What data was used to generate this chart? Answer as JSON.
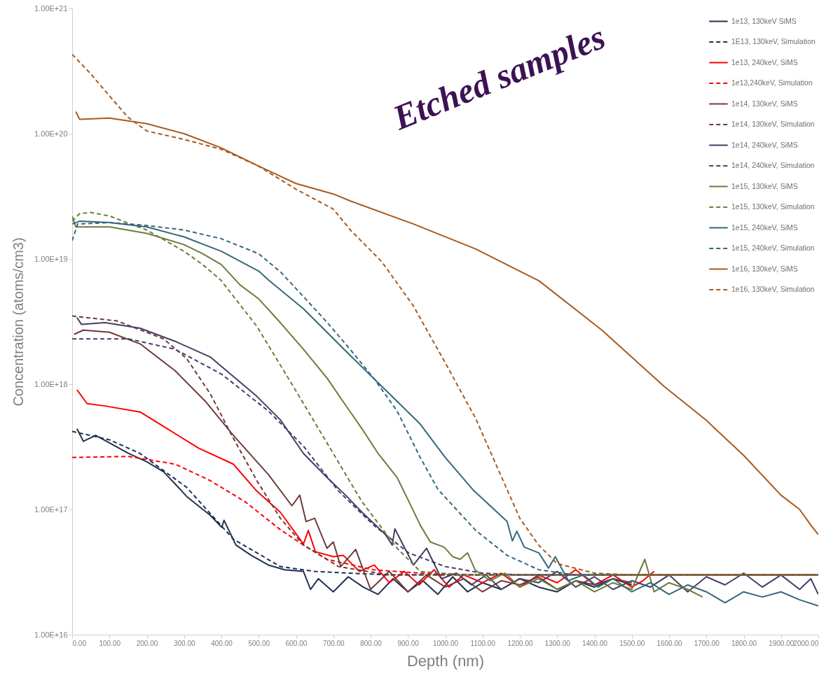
{
  "chart_data": {
    "type": "line",
    "xlabel": "Depth (nm)",
    "ylabel": "Concentration (atoms/cm3)",
    "log": true,
    "legend": "top right",
    "annotations": [
      "Etched samples"
    ],
    "xlim": [
      0,
      2000
    ],
    "xticks": [
      {
        "value": 0,
        "label": "0.00"
      },
      {
        "value": 100,
        "label": "100.00"
      },
      {
        "value": 200,
        "label": "200.00"
      },
      {
        "value": 300,
        "label": "300.00"
      },
      {
        "value": 400,
        "label": "400.00"
      },
      {
        "value": 500,
        "label": "500.00"
      },
      {
        "value": 600,
        "label": "600.00"
      },
      {
        "value": 700,
        "label": "700.00"
      },
      {
        "value": 800,
        "label": "800.00"
      },
      {
        "value": 900,
        "label": "900.00"
      },
      {
        "value": 1000,
        "label": "1000.00"
      },
      {
        "value": 1100,
        "label": "1100.00"
      },
      {
        "value": 1200,
        "label": "1200.00"
      },
      {
        "value": 1300,
        "label": "1300.00"
      },
      {
        "value": 1400,
        "label": "1400.00"
      },
      {
        "value": 1500,
        "label": "1500.00"
      },
      {
        "value": 1600,
        "label": "1600.00"
      },
      {
        "value": 1700,
        "label": "1700.00"
      },
      {
        "value": 1800,
        "label": "1800.00"
      },
      {
        "value": 1900,
        "label": "1900.00"
      },
      {
        "value": 2000,
        "label": "2000.00"
      }
    ],
    "ylim": [
      1e+16,
      1e+21
    ],
    "yticks": [
      {
        "value": 1e+16,
        "label": "1.00E+16"
      },
      {
        "value": 1e+17,
        "label": "1.00E+17"
      },
      {
        "value": 1e+18,
        "label": "1.00E+18"
      },
      {
        "value": 1e+19,
        "label": "1.00E+19"
      },
      {
        "value": 1e+20,
        "label": "1.00E+20"
      },
      {
        "value": 1e+21,
        "label": "1.00E+21"
      }
    ],
    "series": [
      {
        "name": "1e13, 130keV SiMS",
        "color": "#1f3050",
        "line_style": "solid",
        "x": [
          13,
          30,
          63,
          100,
          151,
          200,
          245,
          276,
          307,
          338,
          370,
          401,
          407,
          439,
          480,
          526,
          570,
          620,
          639,
          660,
          700,
          740,
          780,
          820,
          860,
          900,
          940,
          980,
          1020,
          1060,
          1100,
          1150,
          1200,
          1250,
          1300,
          1350,
          1400,
          1450,
          1500
        ],
        "values": [
          4.4e+17,
          3.5e+17,
          3.9e+17,
          3.4e+17,
          2.8e+17,
          2.4e+17,
          2e+17,
          1.6e+17,
          1.27e+17,
          1.07e+17,
          9e+16,
          7.2e+16,
          8.2e+16,
          5.2e+16,
          4.3e+16,
          3.6e+16,
          3.3e+16,
          3.2e+16,
          2.3e+16,
          2.8e+16,
          2.2e+16,
          2.9e+16,
          2.4e+16,
          2.1e+16,
          2.8e+16,
          2.2e+16,
          2.7e+16,
          2.1e+16,
          2.9e+16,
          2.2e+16,
          2.6e+16,
          2.3e+16,
          2.8e+16,
          2.4e+16,
          2.2e+16,
          2.7e+16,
          2.4e+16,
          2.8e+16,
          2.5e+16
        ]
      },
      {
        "name": "1E13, 130keV, Simulation",
        "color": "#1f3050",
        "line_style": "dashed",
        "x": [
          0,
          100,
          182,
          307,
          432,
          558,
          650,
          745,
          850,
          1000,
          1500,
          2000
        ],
        "values": [
          4.2e+17,
          3.6e+17,
          2.8e+17,
          1.5e+17,
          5.8e+16,
          3.5e+16,
          3.2e+16,
          3.1e+16,
          3e+16,
          3e+16,
          3e+16,
          3e+16
        ]
      },
      {
        "name": "1e13, 240keV, SiMS",
        "color": "#ff0000",
        "line_style": "solid",
        "x": [
          13,
          40,
          88,
          182,
          245,
          338,
          432,
          495,
          558,
          620,
          633,
          652,
          700,
          727,
          770,
          810,
          850,
          890,
          930,
          970,
          1010,
          1050,
          1100,
          1150,
          1200,
          1250,
          1300,
          1350,
          1400,
          1450,
          1500,
          1530,
          1560
        ],
        "values": [
          9e+17,
          7e+17,
          6.7e+17,
          6e+17,
          4.6e+17,
          3.1e+17,
          2.3e+17,
          1.4e+17,
          9.5e+16,
          5.3e+16,
          6.8e+16,
          4.6e+16,
          4.2e+16,
          4.3e+16,
          3.2e+16,
          3.6e+16,
          2.6e+16,
          3.2e+16,
          2.5e+16,
          3.3e+16,
          2.4e+16,
          3e+16,
          2.6e+16,
          3.1e+16,
          2.4e+16,
          3e+16,
          2.6e+16,
          3.3e+16,
          2.5e+16,
          3e+16,
          2.4e+16,
          2.7e+16,
          3.2e+16
        ]
      },
      {
        "name": "1e13,240keV, Simulation",
        "color": "#ff0000",
        "line_style": "dashed",
        "x": [
          0,
          151,
          276,
          370,
          464,
          558,
          620,
          683,
          808,
          933,
          1100,
          2000
        ],
        "values": [
          2.6e+17,
          2.65e+17,
          2.3e+17,
          1.7e+17,
          1.15e+17,
          6.9e+16,
          5.2e+16,
          4e+16,
          3.3e+16,
          3.1e+16,
          3e+16,
          3e+16
        ]
      },
      {
        "name": "1e14, 130keV, SiMS",
        "color": "#6e3b3b",
        "line_style": "solid",
        "x": [
          5,
          30,
          100,
          182,
          276,
          357,
          432,
          526,
          589,
          610,
          627,
          650,
          683,
          700,
          720,
          760,
          800,
          850,
          900,
          950,
          1000,
          1050,
          1100,
          1150,
          1200,
          1250,
          1300,
          1350,
          1400,
          1450,
          1500
        ],
        "values": [
          2.5e+18,
          2.7e+18,
          2.6e+18,
          2.1e+18,
          1.28e+18,
          7.3e+17,
          3.9e+17,
          1.9e+17,
          1.07e+17,
          1.3e+17,
          8e+16,
          8.5e+16,
          4.9e+16,
          5.5e+16,
          3.5e+16,
          4.8e+16,
          2.3e+16,
          3.2e+16,
          2.2e+16,
          3e+16,
          2.4e+16,
          2.8e+16,
          2.2e+16,
          2.7e+16,
          2.5e+16,
          2.9e+16,
          2.3e+16,
          2.7e+16,
          2.5e+16,
          2.8e+16,
          2.6e+16
        ]
      },
      {
        "name": "1e14, 130keV, Simulation",
        "color": "#6e3b3b",
        "line_style": "dashed",
        "x": [
          0,
          120,
          245,
          307,
          370,
          432,
          495,
          558,
          620,
          714,
          850,
          1000,
          2000
        ],
        "values": [
          3.5e+18,
          3.2e+18,
          2.3e+18,
          1.6e+18,
          8.4e+17,
          3.7e+17,
          1.7e+17,
          8.5e+16,
          5.2e+16,
          3.5e+16,
          3e+16,
          3e+16,
          3e+16
        ]
      },
      {
        "name": "1e14, 240keV, SiMS",
        "color": "#4a3b66",
        "line_style": "solid",
        "x": [
          13,
          25,
          88,
          182,
          276,
          370,
          495,
          558,
          620,
          683,
          733,
          777,
          840,
          858,
          865,
          915,
          950,
          990,
          1030,
          1070,
          1110,
          1150,
          1200,
          1250,
          1300,
          1350,
          1400,
          1450,
          1500,
          1550,
          1600,
          1650,
          1700,
          1750,
          1800,
          1850,
          1900,
          1950,
          1980,
          2000
        ],
        "values": [
          3.4e+18,
          3e+18,
          3.1e+18,
          2.8e+18,
          2.2e+18,
          1.65e+18,
          8e+17,
          5.2e+17,
          2.8e+17,
          1.8e+17,
          1.3e+17,
          9.5e+16,
          6.3e+16,
          5.2e+16,
          7e+16,
          3.6e+16,
          4.9e+16,
          2.8e+16,
          3.1e+16,
          2.5e+16,
          3e+16,
          2.3e+16,
          2.8e+16,
          2.6e+16,
          3.2e+16,
          2.4e+16,
          2.9e+16,
          2.3e+16,
          2.7e+16,
          2.4e+16,
          3e+16,
          2.2e+16,
          2.9e+16,
          2.5e+16,
          3.1e+16,
          2.4e+16,
          3e+16,
          2.3e+16,
          2.8e+16,
          2.1e+16
        ]
      },
      {
        "name": "1e14, 240keV, Simulation",
        "color": "#4a3b66",
        "line_style": "dashed",
        "x": [
          0,
          151,
          276,
          401,
          526,
          620,
          714,
          808,
          902,
          1000,
          1100,
          1200,
          2000
        ],
        "values": [
          2.3e+18,
          2.3e+18,
          1.9e+18,
          1.2e+18,
          6.1e+17,
          3.2e+17,
          1.4e+17,
          7.5e+16,
          4.5e+16,
          3.5e+16,
          3.1e+16,
          3e+16,
          3e+16
        ]
      },
      {
        "name": "1e15, 130keV, SiMS",
        "color": "#6b7d3a",
        "line_style": "solid",
        "x": [
          0,
          10,
          100,
          200,
          300,
          350,
          400,
          450,
          500,
          558,
          620,
          683,
          730,
          777,
          820,
          871,
          900,
          933,
          960,
          997,
          1020,
          1040,
          1060,
          1080,
          1120,
          1160,
          1200,
          1250,
          1300,
          1350,
          1400,
          1450,
          1500,
          1535,
          1560,
          1600,
          1650,
          1690
        ],
        "values": [
          2.2e+19,
          1.8e+19,
          1.8e+19,
          1.6e+19,
          1.3e+19,
          1.1e+19,
          9e+18,
          6.2e+18,
          4.8e+18,
          3.1e+18,
          1.9e+18,
          1.12e+18,
          7e+17,
          4.4e+17,
          2.8e+17,
          1.8e+17,
          1.2e+17,
          7.5e+16,
          5.5e+16,
          5e+16,
          4.2e+16,
          4e+16,
          4.5e+16,
          3.3e+16,
          2.7e+16,
          3.1e+16,
          2.4e+16,
          2.8e+16,
          2.3e+16,
          2.7e+16,
          2.2e+16,
          2.6e+16,
          2.3e+16,
          4e+16,
          2.2e+16,
          2.6e+16,
          2.3e+16,
          2e+16
        ]
      },
      {
        "name": "1e15, 130keV, Simulation",
        "color": "#6b7d3a",
        "line_style": "dashed",
        "x": [
          0,
          20,
          50,
          100,
          200,
          300,
          350,
          398,
          495,
          589,
          683,
          777,
          871,
          933,
          1050,
          2000
        ],
        "values": [
          2e+19,
          2.3e+19,
          2.35e+19,
          2.2e+19,
          1.7e+19,
          1.15e+19,
          9e+18,
          6.8e+18,
          2.9e+18,
          1e+18,
          3.4e+17,
          1.15e+17,
          4.9e+16,
          3.2e+16,
          3e+16,
          3e+16
        ]
      },
      {
        "name": "1e15, 240keV, SiMS",
        "color": "#35687a",
        "line_style": "solid",
        "x": [
          0,
          20,
          100,
          200,
          300,
          400,
          500,
          526,
          620,
          745,
          871,
          933,
          1000,
          1074,
          1166,
          1180,
          1192,
          1212,
          1251,
          1277,
          1295,
          1330,
          1370,
          1410,
          1450,
          1500,
          1550,
          1600,
          1650,
          1700,
          1750,
          1800,
          1850,
          1900,
          1950,
          2000
        ],
        "values": [
          1.9e+19,
          2e+19,
          1.95e+19,
          1.8e+19,
          1.5e+19,
          1.15e+19,
          8e+18,
          6.8e+18,
          4e+18,
          1.7e+18,
          7.3e+17,
          4.8e+17,
          2.6e+17,
          1.44e+17,
          8e+16,
          5.6e+16,
          6.7e+16,
          5e+16,
          4.5e+16,
          3.4e+16,
          4.2e+16,
          2.7e+16,
          3e+16,
          2.4e+16,
          2.8e+16,
          2.2e+16,
          2.6e+16,
          2.1e+16,
          2.5e+16,
          2.2e+16,
          1.8e+16,
          2.2e+16,
          2e+16,
          2.2e+16,
          1.9e+16,
          1.7e+16
        ]
      },
      {
        "name": "1e15, 240keV, Simulation",
        "color": "#35687a",
        "line_style": "dashed",
        "x": [
          0,
          15,
          100,
          200,
          300,
          400,
          500,
          560,
          620,
          680,
          745,
          810,
          871,
          933,
          981,
          1030,
          1082,
          1166,
          1251,
          1350,
          2000
        ],
        "values": [
          1.4e+19,
          1.9e+19,
          1.95e+19,
          1.85e+19,
          1.7e+19,
          1.45e+19,
          1.1e+19,
          7.8e+18,
          5e+18,
          3.2e+18,
          1.9e+18,
          1.1e+18,
          6.1e+17,
          2.6e+17,
          1.44e+17,
          1e+17,
          6.8e+16,
          4.3e+16,
          3.3e+16,
          3e+16,
          3e+16
        ]
      },
      {
        "name": "1e16, 130keV, SiMS",
        "color": "#a85a1e",
        "line_style": "solid",
        "x": [
          10,
          20,
          100,
          200,
          300,
          400,
          500,
          600,
          700,
          746,
          915,
          1082,
          1251,
          1420,
          1587,
          1698,
          1800,
          1900,
          1950,
          1980,
          2000
        ],
        "values": [
          1.5e+20,
          1.3e+20,
          1.33e+20,
          1.2e+20,
          1e+20,
          7.7e+19,
          5.5e+19,
          4e+19,
          3.3e+19,
          2.9e+19,
          1.9e+19,
          1.2e+19,
          6.7e+18,
          2.7e+18,
          9.6e+17,
          5.2e+17,
          2.7e+17,
          1.3e+17,
          1e+17,
          7.5e+16,
          6.3e+16
        ]
      },
      {
        "name": "1e16, 130keV, Simulation",
        "color": "#a85a1e",
        "line_style": "dashed",
        "x": [
          0,
          50,
          100,
          150,
          200,
          300,
          400,
          500,
          600,
          700,
          746,
          830,
          915,
          999,
          1082,
          1100,
          1200,
          1250,
          1300,
          1400,
          1500,
          2000
        ],
        "values": [
          4.3e+20,
          3e+20,
          2e+20,
          1.35e+20,
          1.05e+20,
          9e+19,
          7.5e+19,
          5.5e+19,
          3.6e+19,
          2.5e+19,
          1.7e+19,
          9.5e+18,
          4.2e+18,
          1.5e+18,
          5.3e+17,
          4e+17,
          8.5e+16,
          5.2e+16,
          3.7e+16,
          3.1e+16,
          3e+16,
          3e+16
        ]
      }
    ]
  }
}
